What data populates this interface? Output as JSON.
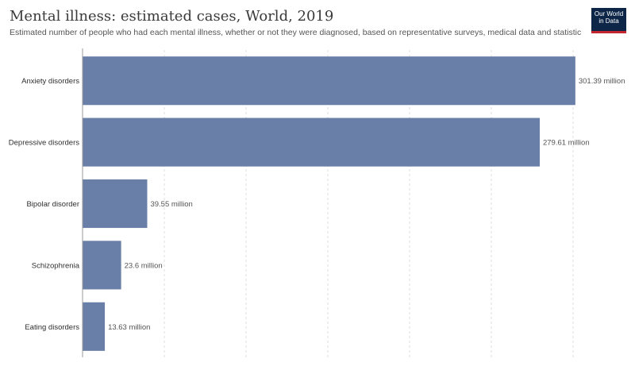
{
  "header": {
    "title": "Mental illness: estimated cases, World, 2019",
    "subtitle": "Estimated number of people who had each mental illness, whether or not they were diagnosed, based on representative surveys, medical data and statistical modelling.",
    "logo_line1": "Our World",
    "logo_line2": "in Data"
  },
  "colors": {
    "bar": "#6a7fa8",
    "grid": "#dddddd",
    "axis": "#999999",
    "logo_bg": "#0d2647",
    "logo_accent": "#c4262e"
  },
  "chart_data": {
    "type": "bar",
    "orientation": "horizontal",
    "categories": [
      "Anxiety disorders",
      "Depressive disorders",
      "Bipolar disorder",
      "Schizophrenia",
      "Eating disorders"
    ],
    "values": [
      301.39,
      279.61,
      39.55,
      23.6,
      13.63
    ],
    "value_labels": [
      "301.39 million",
      "279.61 million",
      "39.55 million",
      "23.6 million",
      "13.63 million"
    ],
    "unit": "million",
    "xlim": [
      0,
      300
    ],
    "grid": true,
    "legend": false
  }
}
